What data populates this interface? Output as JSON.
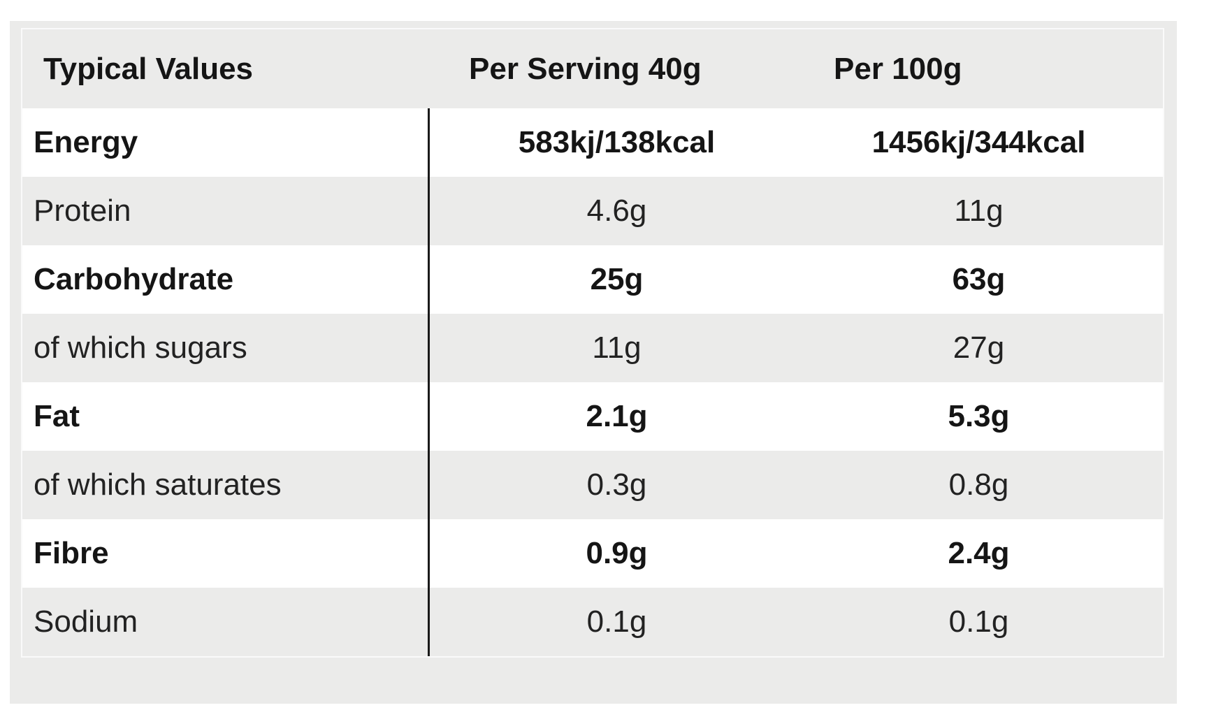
{
  "table": {
    "headers": [
      "Typical Values",
      "Per Serving 40g",
      "Per 100g"
    ],
    "rows": [
      {
        "label": "Energy",
        "per_serving": "583kj/138kcal",
        "per_100g": "1456kj/344kcal",
        "bold": true
      },
      {
        "label": "Protein",
        "per_serving": "4.6g",
        "per_100g": "11g",
        "bold": false
      },
      {
        "label": "Carbohydrate",
        "per_serving": "25g",
        "per_100g": "63g",
        "bold": true
      },
      {
        "label": "of which sugars",
        "per_serving": "11g",
        "per_100g": "27g",
        "bold": false
      },
      {
        "label": "Fat",
        "per_serving": "2.1g",
        "per_100g": "5.3g",
        "bold": true
      },
      {
        "label": "of which saturates",
        "per_serving": "0.3g",
        "per_100g": "0.8g",
        "bold": false
      },
      {
        "label": "Fibre",
        "per_serving": "0.9g",
        "per_100g": "2.4g",
        "bold": true
      },
      {
        "label": "Sodium",
        "per_serving": "0.1g",
        "per_100g": "0.1g",
        "bold": false
      }
    ]
  },
  "colors": {
    "panel_background": "#ebebea",
    "white_row": "#ffffff",
    "divider": "#1a1a1a",
    "text": "#151515"
  }
}
